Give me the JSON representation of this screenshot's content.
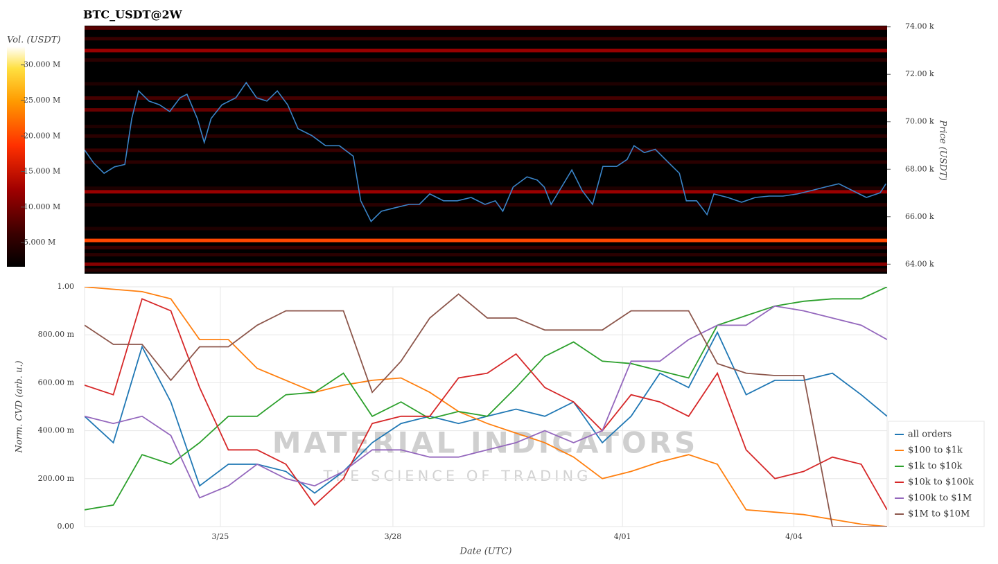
{
  "chart_data": [
    {
      "type": "heatmap",
      "title": "BTC_USDT@2W",
      "colorbar_label": "Vol. (USDT)",
      "clim": [
        1600000,
        32600000
      ],
      "cticks": [
        {
          "value": 5000000,
          "label": "5.000 M"
        },
        {
          "value": 10000000,
          "label": "10.000 M"
        },
        {
          "value": 15000000,
          "label": "15.000 M"
        },
        {
          "value": 20000000,
          "label": "20.000 M"
        },
        {
          "value": 25000000,
          "label": "25.000 M"
        },
        {
          "value": 30000000,
          "label": "30.000 M"
        }
      ],
      "ylabel": "Price (USDT)",
      "ylim": [
        63600,
        74050
      ],
      "yticks": [
        {
          "value": 64000,
          "label": "64.00 k"
        },
        {
          "value": 66000,
          "label": "66.00 k"
        },
        {
          "value": 68000,
          "label": "68.00 k"
        },
        {
          "value": 70000,
          "label": "70.00 k"
        },
        {
          "value": 72000,
          "label": "72.00 k"
        },
        {
          "value": 74000,
          "label": "74.00 k"
        }
      ],
      "xlim": [
        0,
        13.95
      ],
      "levels": {
        "prices": [
          73950,
          73500,
          73000,
          72600,
          71600,
          71000,
          70500,
          69800,
          69400,
          68800,
          68300,
          67200,
          67050,
          66500,
          65500,
          65000,
          64700,
          64400,
          64000,
          63750
        ],
        "volumes": [
          8000000,
          6000000,
          12000000,
          5000000,
          4000000,
          7000000,
          9000000,
          4000000,
          5000000,
          6000000,
          5000000,
          4000000,
          12000000,
          5000000,
          4000000,
          20000000,
          6000000,
          5000000,
          11000000,
          5000000
        ]
      },
      "price": {
        "color": "#3a84c8",
        "x": [
          0,
          0.16,
          0.34,
          0.52,
          0.7,
          0.82,
          0.94,
          1.12,
          1.3,
          1.48,
          1.66,
          1.78,
          1.96,
          2.08,
          2.2,
          2.39,
          2.63,
          2.81,
          2.99,
          3.17,
          3.35,
          3.53,
          3.71,
          3.95,
          4.19,
          4.43,
          4.67,
          4.8,
          4.98,
          5.16,
          5.4,
          5.64,
          5.82,
          6.0,
          6.24,
          6.48,
          6.72,
          6.96,
          7.14,
          7.27,
          7.45,
          7.69,
          7.87,
          7.99,
          8.11,
          8.29,
          8.47,
          8.65,
          8.83,
          9.01,
          9.25,
          9.43,
          9.55,
          9.73,
          9.92,
          10.16,
          10.34,
          10.46,
          10.64,
          10.82,
          10.94,
          11.18,
          11.42,
          11.66,
          11.9,
          12.14,
          12.39,
          12.63,
          12.87,
          13.11,
          13.35,
          13.59,
          13.83,
          13.93
        ],
        "values": [
          68810,
          68260,
          67830,
          68100,
          68200,
          70140,
          71300,
          70870,
          70720,
          70430,
          71010,
          71160,
          70140,
          69130,
          70140,
          70720,
          71010,
          71650,
          71010,
          70870,
          71300,
          70720,
          69710,
          69420,
          68990,
          68990,
          68550,
          66670,
          65800,
          66230,
          66380,
          66520,
          66520,
          66960,
          66670,
          66670,
          66810,
          66520,
          66670,
          66230,
          67250,
          67680,
          67540,
          67250,
          66520,
          67250,
          67970,
          67100,
          66520,
          68120,
          68120,
          68410,
          68990,
          68700,
          68840,
          68260,
          67830,
          66670,
          66670,
          66090,
          66960,
          66810,
          66610,
          66810,
          66870,
          66870,
          66960,
          67100,
          67250,
          67390,
          67100,
          66810,
          67010,
          67390
        ]
      }
    },
    {
      "type": "line",
      "xlabel": "Date (UTC)",
      "ylabel": "Norm. CVD (arb. u.)",
      "xlim": [
        0,
        13.95
      ],
      "xticks": [
        {
          "value": 2.36,
          "label": "3/25"
        },
        {
          "value": 5.36,
          "label": "3/28"
        },
        {
          "value": 9.35,
          "label": "4/01"
        },
        {
          "value": 12.33,
          "label": "4/04"
        }
      ],
      "ylim": [
        0,
        1
      ],
      "yticks": [
        {
          "value": 0,
          "label": "0.00"
        },
        {
          "value": 0.2,
          "label": "200.00 m"
        },
        {
          "value": 0.4,
          "label": "400.00 m"
        },
        {
          "value": 0.6,
          "label": "600.00 m"
        },
        {
          "value": 0.8,
          "label": "800.00 m"
        },
        {
          "value": 1,
          "label": "1.00"
        }
      ],
      "grid": true,
      "legend": "lower right",
      "watermark": [
        "MATERIAL INDICATORS",
        "THE SCIENCE OF TRADING"
      ],
      "x": [
        0,
        0.5,
        1,
        1.5,
        2,
        2.5,
        3,
        3.5,
        4,
        4.5,
        5,
        5.5,
        6,
        6.5,
        7,
        7.5,
        8,
        8.5,
        9,
        9.5,
        10,
        10.5,
        11,
        11.5,
        12,
        12.5,
        13,
        13.5,
        13.95
      ],
      "series": [
        {
          "name": "all orders",
          "color": "#1f77b4",
          "values": [
            0.46,
            0.35,
            0.75,
            0.52,
            0.17,
            0.26,
            0.26,
            0.23,
            0.14,
            0.23,
            0.35,
            0.43,
            0.46,
            0.43,
            0.46,
            0.49,
            0.46,
            0.52,
            0.35,
            0.46,
            0.64,
            0.58,
            0.81,
            0.55,
            0.61,
            0.61,
            0.64,
            0.55,
            0.46
          ]
        },
        {
          "name": "$100 to $1k",
          "color": "#ff7f0e",
          "values": [
            1.0,
            0.99,
            0.98,
            0.95,
            0.78,
            0.78,
            0.66,
            0.61,
            0.56,
            0.59,
            0.61,
            0.62,
            0.56,
            0.48,
            0.43,
            0.39,
            0.35,
            0.29,
            0.2,
            0.23,
            0.27,
            0.3,
            0.26,
            0.07,
            0.06,
            0.05,
            0.03,
            0.01,
            0.0
          ]
        },
        {
          "name": "$1k to $10k",
          "color": "#2ca02c",
          "values": [
            0.07,
            0.09,
            0.3,
            0.26,
            0.35,
            0.46,
            0.46,
            0.55,
            0.56,
            0.64,
            0.46,
            0.52,
            0.45,
            0.48,
            0.46,
            0.58,
            0.71,
            0.77,
            0.69,
            0.68,
            0.65,
            0.62,
            0.84,
            0.88,
            0.92,
            0.94,
            0.95,
            0.95,
            1.0
          ]
        },
        {
          "name": "$10k to $100k",
          "color": "#d62728",
          "values": [
            0.59,
            0.55,
            0.95,
            0.9,
            0.58,
            0.32,
            0.32,
            0.26,
            0.09,
            0.2,
            0.43,
            0.46,
            0.46,
            0.62,
            0.64,
            0.72,
            0.58,
            0.52,
            0.4,
            0.55,
            0.52,
            0.46,
            0.64,
            0.32,
            0.2,
            0.23,
            0.29,
            0.26,
            0.07
          ]
        },
        {
          "name": "$100k to $1M",
          "color": "#9467bd",
          "values": [
            0.46,
            0.43,
            0.46,
            0.38,
            0.12,
            0.17,
            0.26,
            0.2,
            0.17,
            0.23,
            0.32,
            0.32,
            0.29,
            0.29,
            0.32,
            0.35,
            0.4,
            0.35,
            0.4,
            0.69,
            0.69,
            0.78,
            0.84,
            0.84,
            0.92,
            0.9,
            0.87,
            0.84,
            0.78
          ]
        },
        {
          "name": "$1M to $10M",
          "color": "#8c564b",
          "values": [
            0.84,
            0.76,
            0.76,
            0.61,
            0.75,
            0.75,
            0.84,
            0.9,
            0.9,
            0.9,
            0.56,
            0.69,
            0.87,
            0.97,
            0.87,
            0.87,
            0.82,
            0.82,
            0.82,
            0.9,
            0.9,
            0.9,
            0.68,
            0.64,
            0.63,
            0.63,
            0.0,
            0.0,
            0.0
          ]
        }
      ]
    }
  ]
}
